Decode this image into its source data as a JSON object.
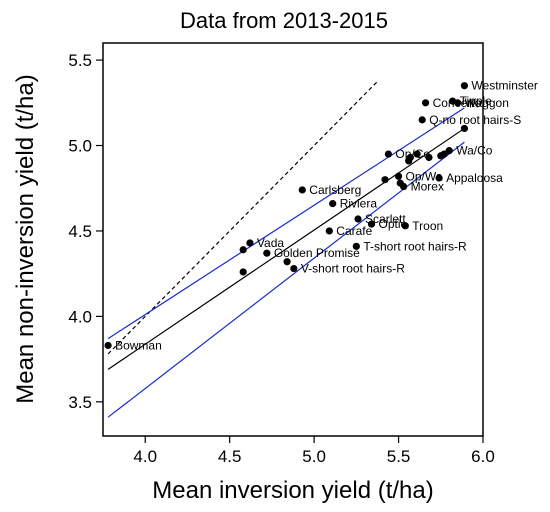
{
  "chart_data": {
    "type": "scatter",
    "title": "Data from 2013-2015",
    "xlabel": "Mean inversion yield (t/ha)",
    "ylabel": "Mean non-inversion yield (t/ha)",
    "xlim": [
      3.75,
      6.0
    ],
    "ylim": [
      3.3,
      5.6
    ],
    "xticks": [
      "4.0",
      "4.5",
      "5.0",
      "5.5",
      "6.0"
    ],
    "yticks": [
      "3.5",
      "4.0",
      "4.5",
      "5.0",
      "5.5"
    ],
    "grid": false,
    "legend": "none",
    "points": [
      {
        "x": 3.78,
        "y": 3.83,
        "label": "Bowman"
      },
      {
        "x": 4.58,
        "y": 4.26,
        "label": ""
      },
      {
        "x": 4.58,
        "y": 4.39,
        "label": ""
      },
      {
        "x": 4.62,
        "y": 4.43,
        "label": "Vada"
      },
      {
        "x": 4.72,
        "y": 4.37,
        "label": "Golden Promise"
      },
      {
        "x": 4.84,
        "y": 4.32,
        "label": ""
      },
      {
        "x": 4.88,
        "y": 4.28,
        "label": "V-short root hairs-R"
      },
      {
        "x": 4.93,
        "y": 4.74,
        "label": "Carlsberg"
      },
      {
        "x": 5.09,
        "y": 4.5,
        "label": "Carafe"
      },
      {
        "x": 5.11,
        "y": 4.66,
        "label": "Riviera"
      },
      {
        "x": 5.25,
        "y": 4.41,
        "label": "T-short root hairs-R"
      },
      {
        "x": 5.26,
        "y": 4.57,
        "label": "Scarlett"
      },
      {
        "x": 5.34,
        "y": 4.54,
        "label": "Optic"
      },
      {
        "x": 5.54,
        "y": 4.53,
        "label": "Troon"
      },
      {
        "x": 5.42,
        "y": 4.8,
        "label": ""
      },
      {
        "x": 5.44,
        "y": 4.95,
        "label": "Op/Co"
      },
      {
        "x": 5.5,
        "y": 4.82,
        "label": "Op/Wa"
      },
      {
        "x": 5.51,
        "y": 4.78,
        "label": ""
      },
      {
        "x": 5.53,
        "y": 4.76,
        "label": "Morex"
      },
      {
        "x": 5.56,
        "y": 4.91,
        "label": ""
      },
      {
        "x": 5.57,
        "y": 4.93,
        "label": ""
      },
      {
        "x": 5.61,
        "y": 4.95,
        "label": ""
      },
      {
        "x": 5.64,
        "y": 5.15,
        "label": "Q-no root hairs-S"
      },
      {
        "x": 5.66,
        "y": 5.25,
        "label": "Concerto"
      },
      {
        "x": 5.68,
        "y": 4.93,
        "label": ""
      },
      {
        "x": 5.74,
        "y": 4.81,
        "label": "Appaloosa"
      },
      {
        "x": 5.75,
        "y": 4.94,
        "label": ""
      },
      {
        "x": 5.77,
        "y": 4.95,
        "label": ""
      },
      {
        "x": 5.8,
        "y": 4.97,
        "label": "Wa/Co"
      },
      {
        "x": 5.82,
        "y": 5.26,
        "label": "Tipple"
      },
      {
        "x": 5.85,
        "y": 5.25,
        "label": "Waggon"
      },
      {
        "x": 5.89,
        "y": 5.35,
        "label": "Westminster"
      },
      {
        "x": 5.89,
        "y": 5.1,
        "label": ""
      }
    ],
    "lines": [
      {
        "style": "dashed",
        "color": "#000000",
        "x": [
          3.78,
          5.38
        ],
        "y": [
          3.78,
          5.38
        ]
      },
      {
        "style": "solid",
        "color": "#000000",
        "x": [
          3.78,
          5.89
        ],
        "y": [
          3.69,
          5.1
        ]
      },
      {
        "style": "solid",
        "color": "#1a2bc8",
        "x": [
          3.78,
          5.89
        ],
        "y": [
          3.87,
          5.22
        ]
      },
      {
        "style": "solid",
        "color": "#1a2bc8",
        "x": [
          3.78,
          5.89
        ],
        "y": [
          3.41,
          5.02
        ]
      }
    ]
  }
}
